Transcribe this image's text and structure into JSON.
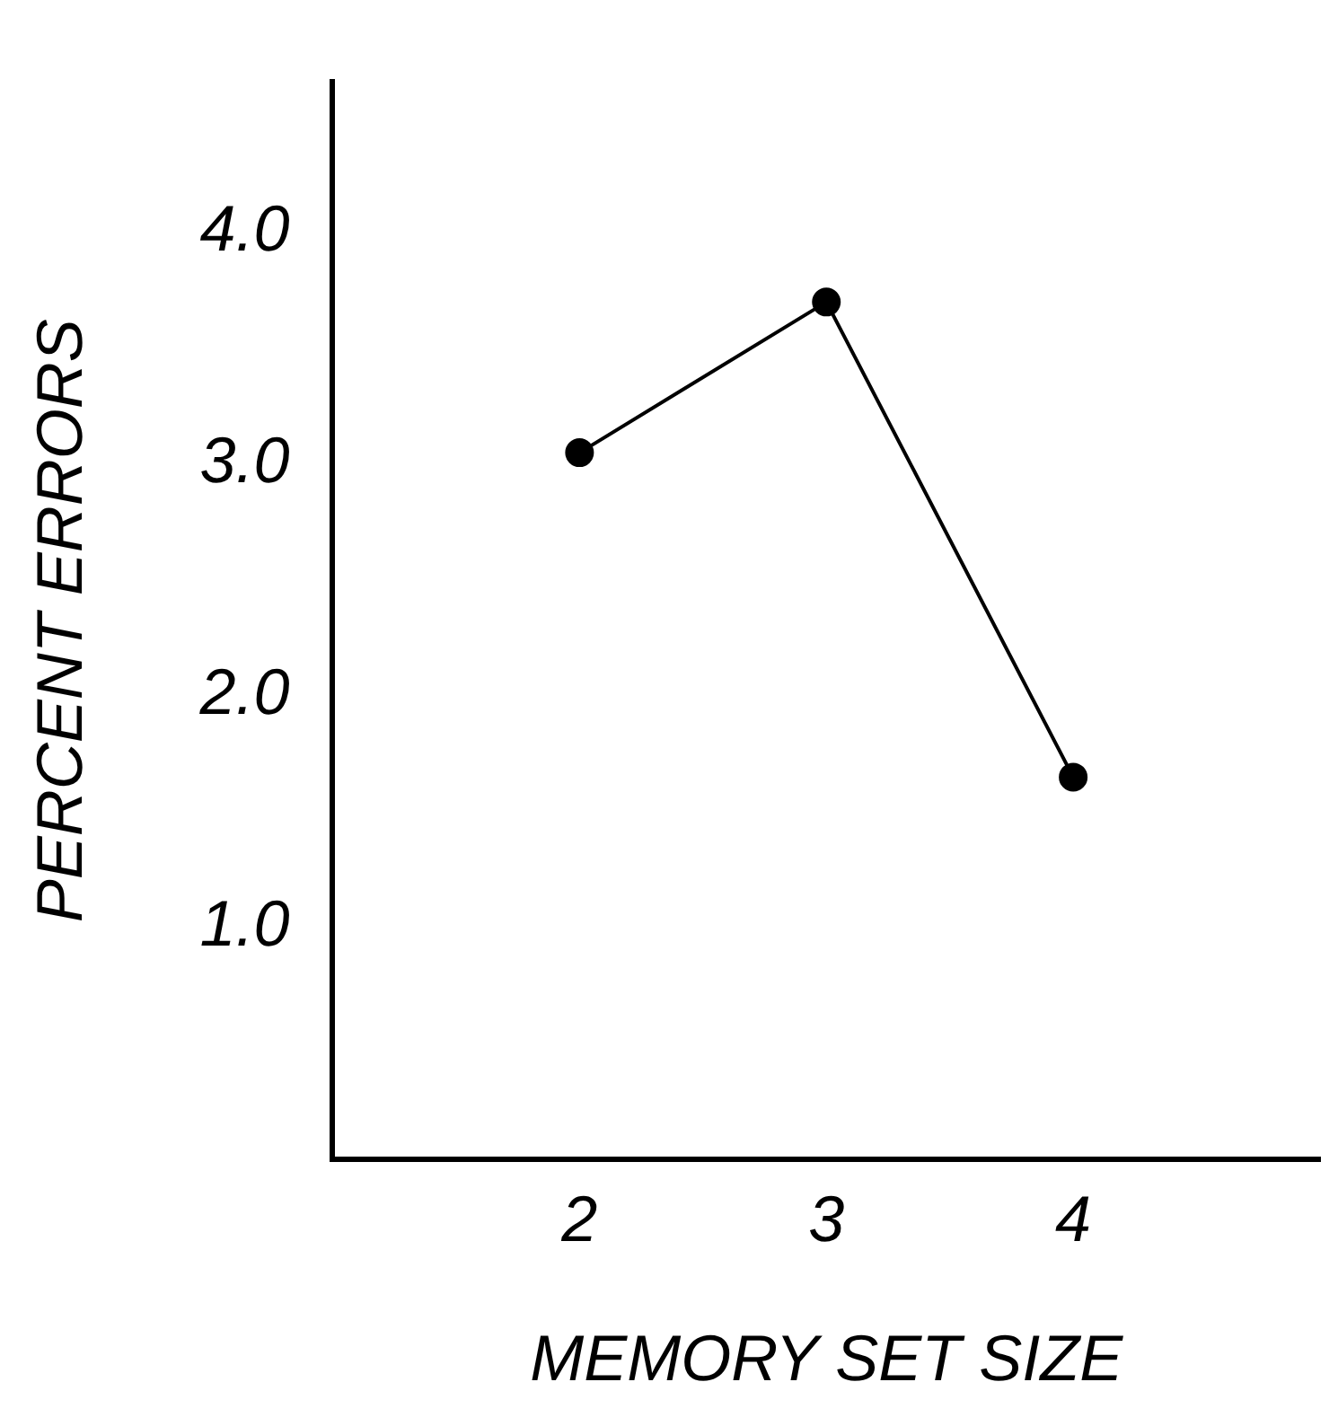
{
  "chart_data": {
    "type": "line",
    "xlabel": "MEMORY SET SIZE",
    "ylabel": "PERCENT ERRORS",
    "x": [
      2,
      3,
      4
    ],
    "series": [
      {
        "color": "#000000",
        "values": [
          3.05,
          3.7,
          1.65
        ]
      }
    ],
    "xlim": [
      1,
      5
    ],
    "xticks": [
      2,
      3,
      4
    ],
    "ylim": [
      0,
      4.65
    ],
    "yticks": [
      {
        "value": 1,
        "label": "1.0"
      },
      {
        "value": 2,
        "label": "2.0"
      },
      {
        "value": 3,
        "label": "3.0"
      },
      {
        "value": 4,
        "label": "4.0"
      }
    ],
    "grid": false,
    "legend": false,
    "marker": "circle",
    "line_style": "solid"
  }
}
